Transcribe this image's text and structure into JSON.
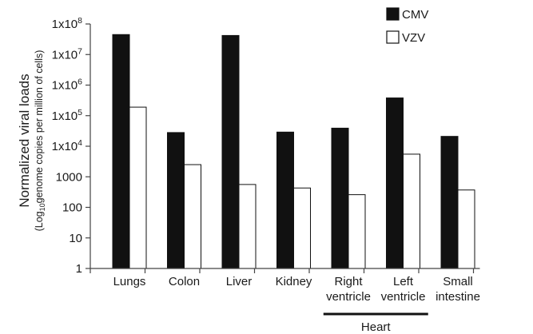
{
  "chart_data": {
    "type": "bar",
    "yscale": "log",
    "ylim": [
      1,
      100000000
    ],
    "ylabel": "Normalized viral loads",
    "ylabel_sub_prefix": "(Log",
    "ylabel_sub_subscript": "10",
    "ylabel_sub_suffix": "genome copies per million of cells)",
    "yticks": [
      "1",
      "10",
      "100",
      "1000",
      "1x10^4",
      "1x10^5",
      "1x10^6",
      "1x10^7",
      "1x10^8"
    ],
    "categories": [
      [
        "Lungs"
      ],
      [
        "Colon"
      ],
      [
        "Liver"
      ],
      [
        "Kidney"
      ],
      [
        "Right",
        "ventricle"
      ],
      [
        "Left",
        "ventricle"
      ],
      [
        "Small",
        "intestine"
      ]
    ],
    "group_label": "Heart",
    "series": [
      {
        "name": "CMV",
        "color": "#111111",
        "values": [
          45000000,
          28000,
          42000000,
          29000,
          39000,
          380000,
          21000
        ]
      },
      {
        "name": "VZV",
        "color": "#ffffff",
        "values": [
          190000,
          2500,
          560,
          430,
          260,
          5500,
          370
        ]
      }
    ],
    "legend_position": "top-right",
    "grid": false
  }
}
